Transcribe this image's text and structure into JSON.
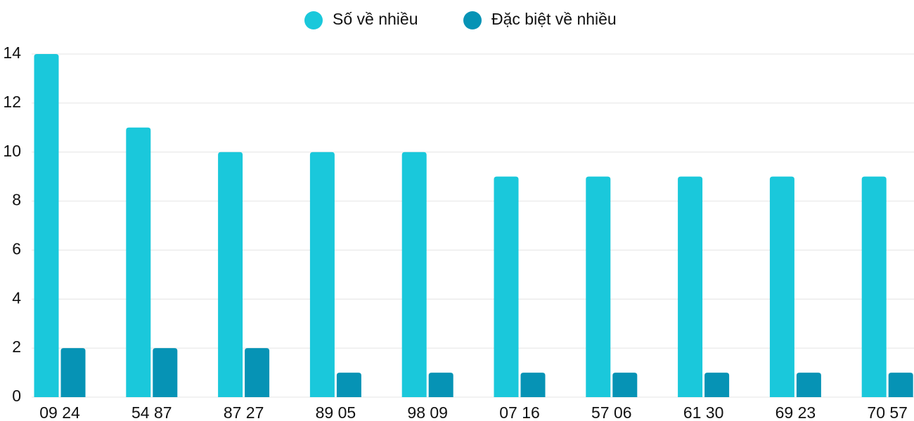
{
  "chart_data": {
    "type": "bar",
    "categories": [
      "09 24",
      "54 87",
      "87 27",
      "89 05",
      "98 09",
      "07 16",
      "57 06",
      "61 30",
      "69 23",
      "70 57"
    ],
    "series": [
      {
        "name": "Số về nhiều",
        "color": "#1ac8db",
        "values": [
          14,
          11,
          10,
          10,
          10,
          9,
          9,
          9,
          9,
          9
        ]
      },
      {
        "name": "Đặc biệt về nhiều",
        "color": "#0693b5",
        "values": [
          2,
          2,
          2,
          1,
          1,
          1,
          1,
          1,
          1,
          1
        ]
      }
    ],
    "ylim": [
      0,
      14
    ],
    "yticks": [
      0,
      2,
      4,
      6,
      8,
      10,
      12,
      14
    ],
    "grid": true,
    "legend": "top"
  }
}
